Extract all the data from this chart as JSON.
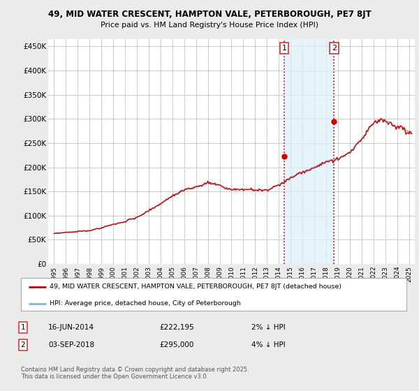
{
  "title_line1": "49, MID WATER CRESCENT, HAMPTON VALE, PETERBOROUGH, PE7 8JT",
  "title_line2": "Price paid vs. HM Land Registry's House Price Index (HPI)",
  "ylabel_ticks": [
    "£0",
    "£50K",
    "£100K",
    "£150K",
    "£200K",
    "£250K",
    "£300K",
    "£350K",
    "£400K",
    "£450K"
  ],
  "ytick_values": [
    0,
    50000,
    100000,
    150000,
    200000,
    250000,
    300000,
    350000,
    400000,
    450000
  ],
  "ylim": [
    0,
    465000
  ],
  "xlim_start": 1994.5,
  "xlim_end": 2025.5,
  "xtick_years": [
    1995,
    1996,
    1997,
    1998,
    1999,
    2000,
    2001,
    2002,
    2003,
    2004,
    2005,
    2006,
    2007,
    2008,
    2009,
    2010,
    2011,
    2012,
    2013,
    2014,
    2015,
    2016,
    2017,
    2018,
    2019,
    2020,
    2021,
    2022,
    2023,
    2024,
    2025
  ],
  "hpi_color": "#7bb8d4",
  "price_color": "#cc0000",
  "marker1_x": 2014.46,
  "marker1_y": 222195,
  "marker2_x": 2018.67,
  "marker2_y": 295000,
  "marker1_date": "16-JUN-2014",
  "marker1_price": "£222,195",
  "marker1_hpi": "2% ↓ HPI",
  "marker2_date": "03-SEP-2018",
  "marker2_price": "£295,000",
  "marker2_hpi": "4% ↓ HPI",
  "vline_color": "#cc0000",
  "shade_color": "#ddeef8",
  "legend_line1": "49, MID WATER CRESCENT, HAMPTON VALE, PETERBOROUGH, PE7 8JT (detached house)",
  "legend_line2": "HPI: Average price, detached house, City of Peterborough",
  "footnote": "Contains HM Land Registry data © Crown copyright and database right 2025.\nThis data is licensed under the Open Government Licence v3.0.",
  "background_color": "#ebebeb",
  "plot_background": "#ffffff",
  "grid_color": "#cccccc"
}
